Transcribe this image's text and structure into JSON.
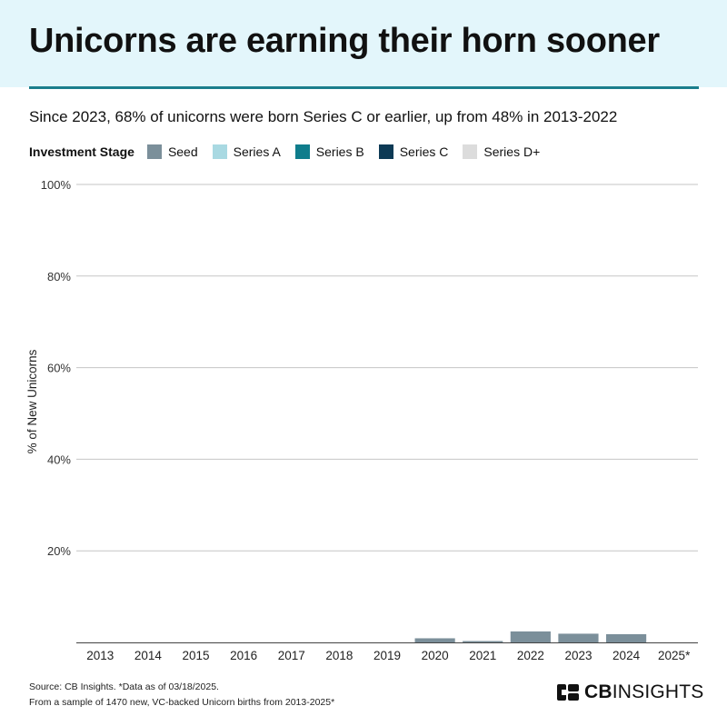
{
  "header": {
    "title": "Unicorns are earning their horn sooner",
    "subtitle": "Since 2023, 68% of unicorns were born Series C or earlier, up from 48% in 2013-2022"
  },
  "legend": {
    "title": "Investment Stage",
    "items": [
      {
        "label": "Seed",
        "color": "#7b8f9a"
      },
      {
        "label": "Series A",
        "color": "#a9d9e2"
      },
      {
        "label": "Series B",
        "color": "#0f7d8c"
      },
      {
        "label": "Series C",
        "color": "#0d3a55"
      },
      {
        "label": "Series D+",
        "color": "#dcdcdc"
      }
    ]
  },
  "chart_data": {
    "type": "bar",
    "stacked": true,
    "ylabel": "% of New Unicorns",
    "ylim": [
      0,
      100
    ],
    "yticks": [
      20,
      40,
      60,
      80,
      100
    ],
    "ytick_labels": [
      "20%",
      "40%",
      "60%",
      "80%",
      "100%"
    ],
    "grid": true,
    "legend_position": "top-left",
    "categories": [
      "2013",
      "2014",
      "2015",
      "2016",
      "2017",
      "2018",
      "2019",
      "2020",
      "2021",
      "2022",
      "2023",
      "2024",
      "2025*"
    ],
    "series": [
      {
        "name": "Seed",
        "color": "#7b8f9a",
        "values": [
          0,
          0,
          0,
          0,
          0,
          0,
          0,
          0.9,
          0.3,
          2.4,
          1.9,
          1.8,
          0
        ]
      }
    ]
  },
  "footer": {
    "source": "Source: CB Insights. *Data as of 03/18/2025.",
    "note": "From a sample of 1470 new, VC-backed Unicorn births from 2013-2025*"
  },
  "brand": {
    "logo_bold": "CB",
    "logo_light": "INSIGHTS"
  }
}
